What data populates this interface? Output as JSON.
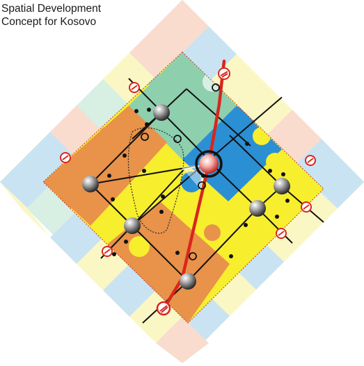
{
  "title": {
    "line1": "Spatial Development",
    "line2": "Concept for Kosovo"
  },
  "colors": {
    "orange": "#e8924a",
    "green": "#8ecfae",
    "blue": "#2b8fd4",
    "yellow": "#f7ee2e",
    "pale_yellow": "#fbf7c4",
    "pale_blue": "#c9e3f3",
    "pale_pink": "#f9dccd",
    "pale_green": "#d8efe3",
    "red_axis": "#d9261c",
    "black": "#111111"
  },
  "icons": [
    "major-node-sphere",
    "capital-node-sphere",
    "border-crossing-icon",
    "small-dot",
    "open-circle"
  ]
}
